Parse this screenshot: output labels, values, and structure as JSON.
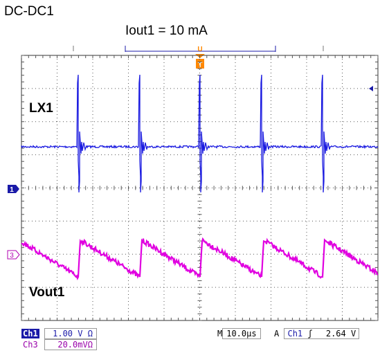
{
  "figure": {
    "title": "DC-DC1",
    "subtitle": "Iout1 = 10 mA"
  },
  "channels": [
    {
      "id": "Ch1",
      "marker": "1",
      "label": "LX1",
      "color": "#1a1ae0",
      "scale": "1.00 V Ω"
    },
    {
      "id": "Ch3",
      "marker": "3",
      "label": "Vout1",
      "color": "#e000e0",
      "scale": "20.0mVΩ"
    }
  ],
  "trigger": {
    "marker": "T",
    "timebase_prefix": "M",
    "timebase": "10.0µs",
    "mode_prefix": "A",
    "source": "Ch1",
    "slope_icon": "rising-edge-icon",
    "slope_glyph": "ʃ",
    "level": "2.64 V"
  },
  "colors": {
    "ch1": "#1a1ae0",
    "ch3": "#e000e0",
    "grid": "#333333",
    "trigger": "#ff8800"
  }
}
